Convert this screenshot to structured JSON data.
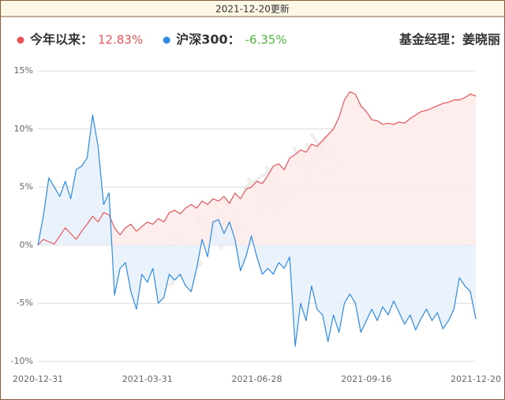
{
  "chart_data": {
    "type": "line",
    "update": "2021-12-20更新",
    "manager": "基金经理：姜晓丽",
    "watermark": "搞钱基地",
    "categories": [
      "2020-12-31",
      null,
      null,
      null,
      null,
      null,
      null,
      null,
      null,
      null,
      null,
      null,
      null,
      null,
      null,
      null,
      null,
      null,
      null,
      null,
      "2021-03-31",
      null,
      null,
      null,
      null,
      null,
      null,
      null,
      null,
      null,
      null,
      null,
      null,
      null,
      null,
      null,
      null,
      null,
      null,
      null,
      "2021-06-28",
      null,
      null,
      null,
      null,
      null,
      null,
      null,
      null,
      null,
      null,
      null,
      null,
      null,
      null,
      null,
      null,
      null,
      null,
      null,
      "2021-09-16",
      null,
      null,
      null,
      null,
      null,
      null,
      null,
      null,
      null,
      null,
      null,
      null,
      null,
      null,
      null,
      null,
      null,
      null,
      null,
      "2021-12-20"
    ],
    "series": [
      {
        "name": "今年以来：",
        "color": "#e8545a",
        "fill": "#fdeaea",
        "latest_label": "12.83%",
        "label_color": "#e8545a",
        "values": [
          0,
          0.5,
          0.3,
          0.1,
          0.8,
          1.5,
          1.0,
          0.5,
          1.2,
          1.8,
          2.5,
          2.0,
          2.8,
          2.6,
          1.5,
          0.9,
          1.5,
          1.8,
          1.2,
          1.6,
          2.0,
          1.8,
          2.3,
          2.0,
          2.8,
          3.0,
          2.7,
          3.2,
          3.5,
          3.2,
          3.8,
          3.5,
          4.0,
          3.8,
          4.2,
          3.6,
          4.5,
          4.0,
          4.8,
          5.0,
          5.5,
          5.3,
          6.0,
          6.8,
          7.0,
          6.5,
          7.5,
          7.8,
          8.2,
          8.0,
          8.7,
          8.5,
          9.0,
          9.5,
          10.0,
          11.0,
          12.5,
          13.2,
          13.0,
          12.0,
          11.5,
          10.8,
          10.7,
          10.4,
          10.5,
          10.4,
          10.6,
          10.5,
          10.9,
          11.2,
          11.5,
          11.6,
          11.8,
          12.0,
          12.2,
          12.3,
          12.5,
          12.5,
          12.7,
          13.0,
          12.83
        ]
      },
      {
        "name": "沪深300：",
        "color": "#2f8ae5",
        "fill": "#e6f1fc",
        "latest_label": "-6.35%",
        "label_color": "#4cb83c",
        "values": [
          0,
          2.5,
          5.8,
          5.0,
          4.2,
          5.5,
          4.0,
          6.5,
          6.8,
          7.5,
          11.2,
          8.5,
          3.5,
          4.5,
          -4.3,
          -2.0,
          -1.5,
          -4.0,
          -5.5,
          -2.5,
          -3.2,
          -2.0,
          -5.0,
          -4.5,
          -2.5,
          -3.0,
          -2.5,
          -3.5,
          -4.0,
          -2.0,
          0.5,
          -1.0,
          2.0,
          2.2,
          1.0,
          2.0,
          0.5,
          -2.2,
          -1.0,
          0.8,
          -1.0,
          -2.5,
          -2.0,
          -2.5,
          -1.5,
          -2.0,
          -1.0,
          -8.7,
          -5.0,
          -6.5,
          -3.5,
          -5.5,
          -6.0,
          -8.3,
          -6.0,
          -7.5,
          -5.0,
          -4.2,
          -5.0,
          -7.5,
          -6.5,
          -5.5,
          -6.5,
          -5.3,
          -6.0,
          -4.8,
          -5.8,
          -6.8,
          -6.0,
          -7.3,
          -6.3,
          -5.5,
          -6.5,
          -5.8,
          -7.2,
          -6.5,
          -5.5,
          -2.8,
          -3.5,
          -4.0,
          -6.35
        ]
      }
    ],
    "ylim": [
      -10,
      15
    ],
    "yticks": [
      {
        "value": -10,
        "label": "-10%"
      },
      {
        "value": -5,
        "label": "-5%"
      },
      {
        "value": 0,
        "label": "0%"
      },
      {
        "value": 5,
        "label": "5%"
      },
      {
        "value": 10,
        "label": "10%"
      },
      {
        "value": 15,
        "label": "15%"
      }
    ],
    "grid": true
  }
}
